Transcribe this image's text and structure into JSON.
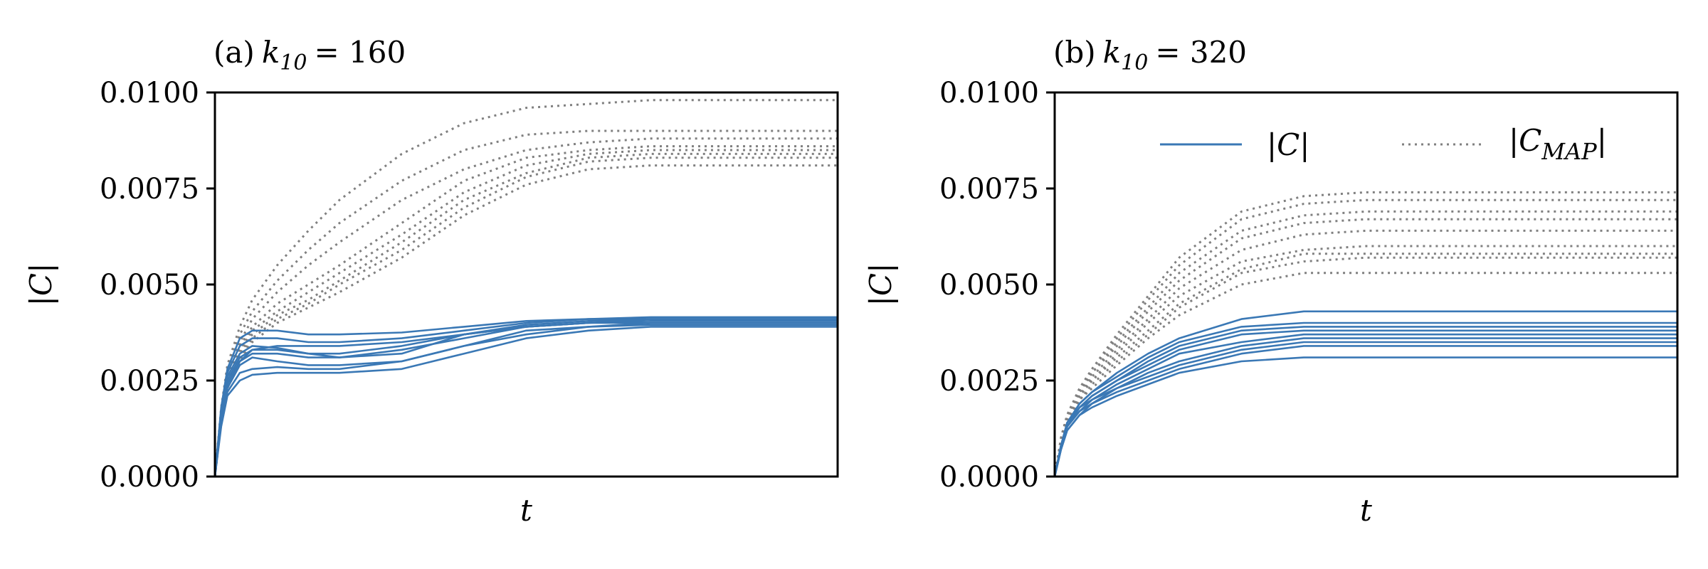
{
  "colors": {
    "solid": "#3a78b5",
    "dotted": "#808080"
  },
  "chart_data": [
    {
      "type": "line",
      "title": "(a) k10 = 160",
      "title_prefix": "(a)",
      "title_var": "k",
      "title_sub": "10",
      "title_rest": "= 160",
      "xlabel": "t",
      "ylabel": "|C|",
      "ylim": [
        0,
        0.01
      ],
      "yticks": [
        "0.0000",
        "0.0025",
        "0.0050",
        "0.0075",
        "0.0100"
      ],
      "grid": false,
      "legend": null,
      "x": [
        0,
        0.01,
        0.02,
        0.04,
        0.06,
        0.1,
        0.15,
        0.2,
        0.3,
        0.4,
        0.5,
        0.6,
        0.7,
        0.8,
        0.9,
        1.0
      ],
      "series": [
        {
          "style": "solid",
          "values": [
            0,
            0.0018,
            0.0028,
            0.0036,
            0.0038,
            0.0038,
            0.0037,
            0.0037,
            0.00375,
            0.0039,
            0.00405,
            0.0041,
            0.00415,
            0.00415,
            0.00415,
            0.00415
          ]
        },
        {
          "style": "solid",
          "values": [
            0,
            0.0017,
            0.0027,
            0.0034,
            0.0036,
            0.0036,
            0.0035,
            0.0035,
            0.0036,
            0.0038,
            0.004,
            0.0041,
            0.0041,
            0.0041,
            0.0041,
            0.0041
          ]
        },
        {
          "style": "solid",
          "values": [
            0,
            0.0017,
            0.0026,
            0.0032,
            0.0034,
            0.00335,
            0.0032,
            0.0031,
            0.0032,
            0.0037,
            0.00395,
            0.00405,
            0.0041,
            0.0041,
            0.0041,
            0.0041
          ]
        },
        {
          "style": "solid",
          "values": [
            0,
            0.0016,
            0.0025,
            0.0031,
            0.0033,
            0.0033,
            0.0032,
            0.0032,
            0.0034,
            0.0037,
            0.0039,
            0.004,
            0.00405,
            0.00405,
            0.00405,
            0.00405
          ]
        },
        {
          "style": "solid",
          "values": [
            0,
            0.0016,
            0.0024,
            0.003,
            0.0032,
            0.0032,
            0.0031,
            0.0031,
            0.0033,
            0.0036,
            0.0039,
            0.004,
            0.004,
            0.004,
            0.004,
            0.004
          ]
        },
        {
          "style": "solid",
          "values": [
            0,
            0.0015,
            0.0023,
            0.0029,
            0.0031,
            0.003,
            0.0029,
            0.0029,
            0.003,
            0.0034,
            0.0038,
            0.0039,
            0.004,
            0.004,
            0.004,
            0.004
          ]
        },
        {
          "style": "solid",
          "values": [
            0,
            0.0014,
            0.0022,
            0.0027,
            0.0028,
            0.00285,
            0.0028,
            0.0028,
            0.003,
            0.0034,
            0.0037,
            0.0039,
            0.00395,
            0.00395,
            0.00395,
            0.00395
          ]
        },
        {
          "style": "solid",
          "values": [
            0,
            0.0013,
            0.0021,
            0.0025,
            0.00265,
            0.0027,
            0.0027,
            0.0027,
            0.0028,
            0.0032,
            0.0036,
            0.0038,
            0.0039,
            0.0039,
            0.0039,
            0.0039
          ]
        },
        {
          "style": "solid",
          "values": [
            0,
            0.0015,
            0.0024,
            0.003,
            0.0033,
            0.0034,
            0.0034,
            0.0034,
            0.0035,
            0.0037,
            0.0039,
            0.004,
            0.0041,
            0.0041,
            0.0041,
            0.0041
          ]
        },
        {
          "style": "dotted",
          "values": [
            0,
            0.0018,
            0.0029,
            0.0039,
            0.0046,
            0.0055,
            0.0064,
            0.0072,
            0.0084,
            0.0092,
            0.0096,
            0.0097,
            0.0098,
            0.0098,
            0.0098,
            0.0098
          ]
        },
        {
          "style": "dotted",
          "values": [
            0,
            0.0017,
            0.0028,
            0.0037,
            0.0043,
            0.0051,
            0.0059,
            0.0066,
            0.0077,
            0.0085,
            0.0089,
            0.009,
            0.009,
            0.009,
            0.009,
            0.009
          ]
        },
        {
          "style": "dotted",
          "values": [
            0,
            0.0016,
            0.0027,
            0.0035,
            0.0041,
            0.0048,
            0.0055,
            0.0061,
            0.0072,
            0.008,
            0.0085,
            0.0087,
            0.0088,
            0.0088,
            0.0088,
            0.0088
          ]
        },
        {
          "style": "dotted",
          "values": [
            0,
            0.0016,
            0.0026,
            0.0034,
            0.0039,
            0.0045,
            0.005,
            0.0055,
            0.0066,
            0.0077,
            0.0083,
            0.0085,
            0.0086,
            0.0086,
            0.0086,
            0.0086
          ]
        },
        {
          "style": "dotted",
          "values": [
            0,
            0.0015,
            0.0025,
            0.0033,
            0.0038,
            0.0043,
            0.0048,
            0.0053,
            0.0063,
            0.0074,
            0.0081,
            0.0084,
            0.0085,
            0.0085,
            0.0085,
            0.0085
          ]
        },
        {
          "style": "dotted",
          "values": [
            0,
            0.0015,
            0.0024,
            0.0032,
            0.0037,
            0.0042,
            0.0046,
            0.0051,
            0.0061,
            0.0072,
            0.0079,
            0.0083,
            0.0084,
            0.0084,
            0.0084,
            0.0084
          ]
        },
        {
          "style": "dotted",
          "values": [
            0,
            0.0014,
            0.0023,
            0.0031,
            0.0036,
            0.0041,
            0.0045,
            0.005,
            0.0059,
            0.007,
            0.0078,
            0.0082,
            0.0083,
            0.0083,
            0.0083,
            0.0083
          ]
        },
        {
          "style": "dotted",
          "values": [
            0,
            0.0014,
            0.0023,
            0.003,
            0.0035,
            0.004,
            0.0044,
            0.0048,
            0.0057,
            0.0068,
            0.0076,
            0.008,
            0.0081,
            0.0081,
            0.0081,
            0.0081
          ]
        }
      ]
    },
    {
      "type": "line",
      "title": "(b) k10 = 320",
      "title_prefix": "(b)",
      "title_var": "k",
      "title_sub": "10",
      "title_rest": "= 320",
      "xlabel": "t",
      "ylabel": "|C|",
      "ylim": [
        0,
        0.01
      ],
      "yticks": [
        "0.0000",
        "0.0025",
        "0.0050",
        "0.0075",
        "0.0100"
      ],
      "grid": false,
      "legend": {
        "position": "top-right",
        "entries": [
          {
            "style": "solid",
            "label": "|C|"
          },
          {
            "style": "dotted",
            "label": "|C",
            "label_sub": "MAP",
            "label_end": "|"
          }
        ]
      },
      "x": [
        0,
        0.01,
        0.02,
        0.04,
        0.06,
        0.1,
        0.15,
        0.2,
        0.3,
        0.4,
        0.5,
        0.6,
        0.7,
        0.8,
        0.9,
        1.0
      ],
      "series": [
        {
          "style": "solid",
          "values": [
            0,
            0.0008,
            0.0014,
            0.0019,
            0.0022,
            0.0027,
            0.0032,
            0.0036,
            0.0041,
            0.0043,
            0.0043,
            0.0043,
            0.0043,
            0.0043,
            0.0043,
            0.0043
          ]
        },
        {
          "style": "solid",
          "values": [
            0,
            0.0008,
            0.0014,
            0.0019,
            0.0022,
            0.0026,
            0.0031,
            0.0035,
            0.0039,
            0.004,
            0.004,
            0.004,
            0.004,
            0.004,
            0.004,
            0.004
          ]
        },
        {
          "style": "solid",
          "values": [
            0,
            0.0008,
            0.0014,
            0.0018,
            0.0021,
            0.0025,
            0.003,
            0.0034,
            0.0038,
            0.0039,
            0.0039,
            0.0039,
            0.0039,
            0.0039,
            0.0039,
            0.0039
          ]
        },
        {
          "style": "solid",
          "values": [
            0,
            0.0008,
            0.0013,
            0.0018,
            0.0021,
            0.0025,
            0.0029,
            0.0033,
            0.0037,
            0.0038,
            0.0038,
            0.0038,
            0.0038,
            0.0038,
            0.0038,
            0.0038
          ]
        },
        {
          "style": "solid",
          "values": [
            0,
            0.0008,
            0.0013,
            0.0018,
            0.002,
            0.0024,
            0.0028,
            0.0032,
            0.0035,
            0.0037,
            0.0037,
            0.0037,
            0.0037,
            0.0037,
            0.0037,
            0.0037
          ]
        },
        {
          "style": "solid",
          "values": [
            0,
            0.0008,
            0.0013,
            0.0017,
            0.002,
            0.0023,
            0.0027,
            0.003,
            0.0034,
            0.0036,
            0.0036,
            0.0036,
            0.0036,
            0.0036,
            0.0036,
            0.0036
          ]
        },
        {
          "style": "solid",
          "values": [
            0,
            0.0007,
            0.0013,
            0.0017,
            0.0019,
            0.0023,
            0.0026,
            0.0029,
            0.0033,
            0.0035,
            0.0035,
            0.0035,
            0.0035,
            0.0035,
            0.0035,
            0.0035
          ]
        },
        {
          "style": "solid",
          "values": [
            0,
            0.0007,
            0.0012,
            0.0016,
            0.0019,
            0.0022,
            0.0025,
            0.0028,
            0.0032,
            0.0034,
            0.0034,
            0.0034,
            0.0034,
            0.0034,
            0.0034,
            0.0034
          ]
        },
        {
          "style": "solid",
          "values": [
            0,
            0.0007,
            0.0012,
            0.0016,
            0.0018,
            0.0021,
            0.0024,
            0.0027,
            0.003,
            0.0031,
            0.0031,
            0.0031,
            0.0031,
            0.0031,
            0.0031,
            0.0031
          ]
        },
        {
          "style": "dotted",
          "values": [
            0,
            0.001,
            0.0016,
            0.0023,
            0.0028,
            0.0037,
            0.0047,
            0.0057,
            0.0069,
            0.0073,
            0.0074,
            0.0074,
            0.0074,
            0.0074,
            0.0074,
            0.0074
          ]
        },
        {
          "style": "dotted",
          "values": [
            0,
            0.001,
            0.0016,
            0.0023,
            0.0028,
            0.0036,
            0.0046,
            0.0055,
            0.0067,
            0.0071,
            0.0072,
            0.0072,
            0.0072,
            0.0072,
            0.0072,
            0.0072
          ]
        },
        {
          "style": "dotted",
          "values": [
            0,
            0.001,
            0.0016,
            0.0022,
            0.0027,
            0.0035,
            0.0044,
            0.0053,
            0.0064,
            0.0068,
            0.0069,
            0.0069,
            0.0069,
            0.0069,
            0.0069,
            0.0069
          ]
        },
        {
          "style": "dotted",
          "values": [
            0,
            0.001,
            0.0016,
            0.0022,
            0.0027,
            0.0034,
            0.0043,
            0.0051,
            0.0062,
            0.0066,
            0.0067,
            0.0067,
            0.0067,
            0.0067,
            0.0067,
            0.0067
          ]
        },
        {
          "style": "dotted",
          "values": [
            0,
            0.0009,
            0.0015,
            0.0021,
            0.0026,
            0.0033,
            0.0041,
            0.0049,
            0.0059,
            0.0063,
            0.0064,
            0.0064,
            0.0064,
            0.0064,
            0.0064,
            0.0064
          ]
        },
        {
          "style": "dotted",
          "values": [
            0,
            0.0009,
            0.0015,
            0.0021,
            0.0025,
            0.0032,
            0.004,
            0.0047,
            0.0056,
            0.0059,
            0.006,
            0.006,
            0.006,
            0.006,
            0.006,
            0.006
          ]
        },
        {
          "style": "dotted",
          "values": [
            0,
            0.0009,
            0.0015,
            0.0021,
            0.0025,
            0.0031,
            0.0038,
            0.0045,
            0.0054,
            0.0058,
            0.0058,
            0.0058,
            0.0058,
            0.0058,
            0.0058,
            0.0058
          ]
        },
        {
          "style": "dotted",
          "values": [
            0,
            0.0009,
            0.0015,
            0.002,
            0.0024,
            0.003,
            0.0037,
            0.0044,
            0.0053,
            0.0056,
            0.0057,
            0.0057,
            0.0057,
            0.0057,
            0.0057,
            0.0057
          ]
        },
        {
          "style": "dotted",
          "values": [
            0,
            0.0009,
            0.0014,
            0.002,
            0.0023,
            0.0029,
            0.0036,
            0.0042,
            0.005,
            0.0053,
            0.0053,
            0.0053,
            0.0053,
            0.0053,
            0.0053,
            0.0053
          ]
        }
      ]
    }
  ]
}
